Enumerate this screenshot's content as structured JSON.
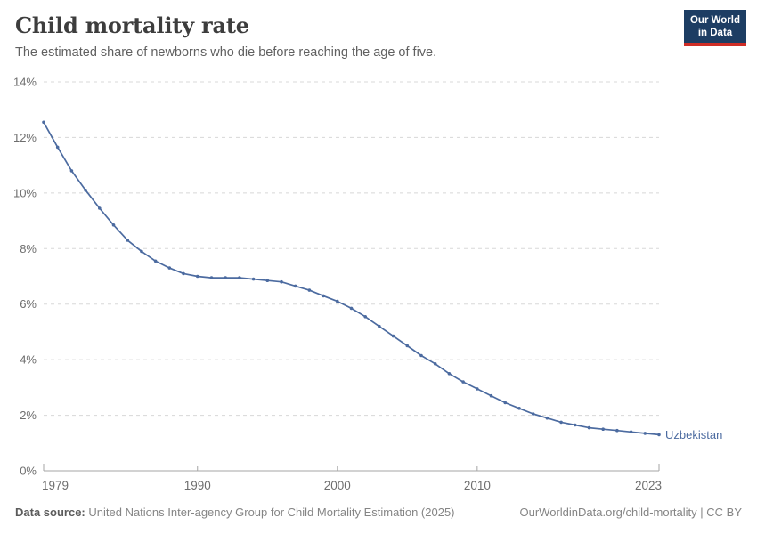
{
  "header": {
    "title": "Child mortality rate",
    "subtitle": "The estimated share of newborns who die before reaching the age of five.",
    "logo": {
      "line1": "Our World",
      "line2": "in Data"
    }
  },
  "chart_data": {
    "type": "line",
    "title": "Child mortality rate",
    "entity_label": "Uzbekistan",
    "unit_suffix": "%",
    "x": [
      1979,
      1980,
      1981,
      1982,
      1983,
      1984,
      1985,
      1986,
      1987,
      1988,
      1989,
      1990,
      1991,
      1992,
      1993,
      1994,
      1995,
      1996,
      1997,
      1998,
      1999,
      2000,
      2001,
      2002,
      2003,
      2004,
      2005,
      2006,
      2007,
      2008,
      2009,
      2010,
      2011,
      2012,
      2013,
      2014,
      2015,
      2016,
      2017,
      2018,
      2019,
      2020,
      2021,
      2022,
      2023
    ],
    "series": [
      {
        "name": "Uzbekistan",
        "color": "#4c6ba0",
        "values": [
          12.55,
          11.65,
          10.8,
          10.1,
          9.45,
          8.85,
          8.3,
          7.9,
          7.55,
          7.3,
          7.1,
          7.0,
          6.95,
          6.95,
          6.95,
          6.9,
          6.85,
          6.8,
          6.65,
          6.5,
          6.3,
          6.1,
          5.85,
          5.55,
          5.2,
          4.85,
          4.5,
          4.15,
          3.85,
          3.5,
          3.2,
          2.95,
          2.7,
          2.45,
          2.25,
          2.05,
          1.9,
          1.75,
          1.65,
          1.55,
          1.5,
          1.45,
          1.4,
          1.35,
          1.3
        ]
      }
    ],
    "xlim": [
      1979,
      2023
    ],
    "ylim": [
      0,
      14
    ],
    "y_ticks": [
      0,
      2,
      4,
      6,
      8,
      10,
      12,
      14
    ],
    "x_ticks": [
      1979,
      1990,
      2000,
      2010,
      2023
    ],
    "grid": "horizontal-dashed",
    "legend_position": "end-of-line"
  },
  "footer": {
    "source_label": "Data source:",
    "source_text": "United Nations Inter-agency Group for Child Mortality Estimation (2025)",
    "link_text": "OurWorldinData.org/child-mortality | CC BY"
  },
  "colors": {
    "line": "#4c6ba0",
    "gridline": "#d8d8d8",
    "axis_line": "#a5a5a5",
    "tick_label": "#6e6e6e",
    "title": "#3d3d3d",
    "subtitle": "#616161",
    "logo_bg": "#1d3d63",
    "logo_red": "#cf2d26"
  }
}
